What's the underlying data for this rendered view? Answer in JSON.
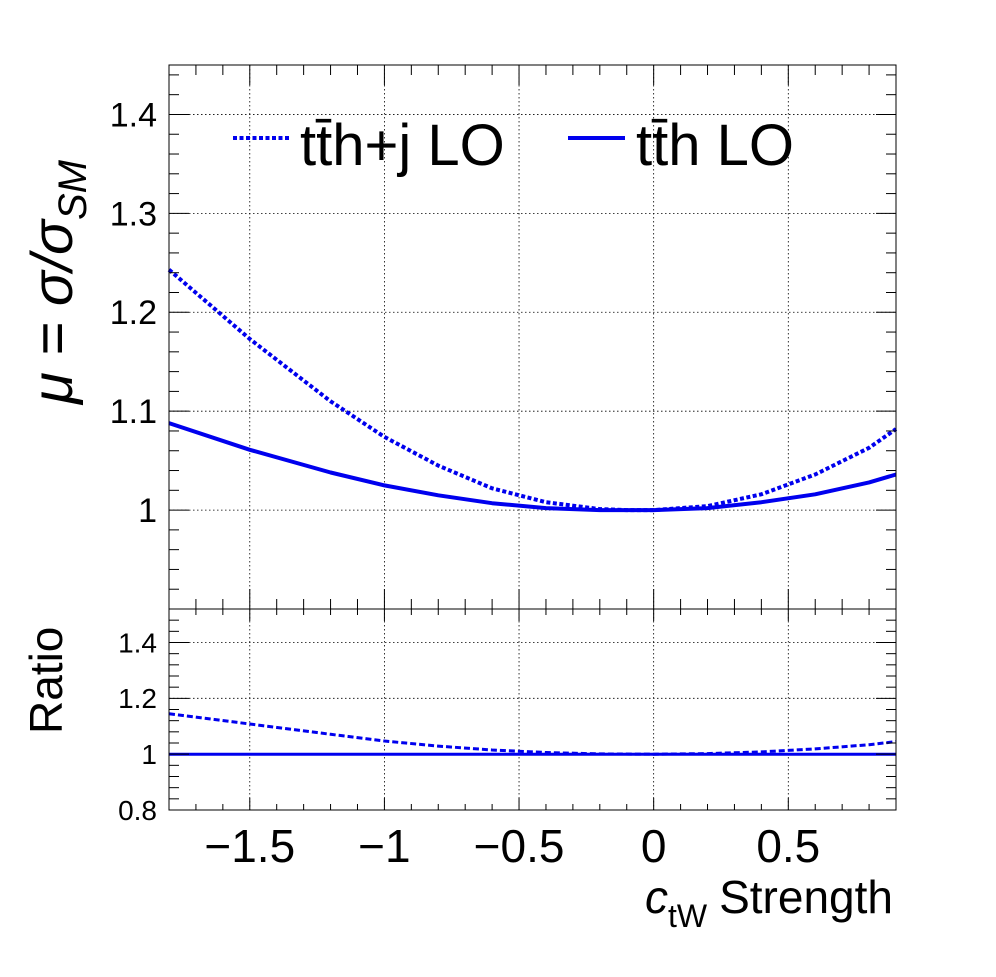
{
  "chart_data": {
    "type": "line",
    "colors": {
      "series": "#0000ee",
      "axes": "#000000"
    },
    "xlabel": {
      "symbol": "c",
      "subscript": "tW",
      "text": "Strength"
    },
    "x_range": [
      -1.8,
      0.9
    ],
    "x_ticks": [
      {
        "value": -1.5,
        "label": "−1.5"
      },
      {
        "value": -1,
        "label": "−1"
      },
      {
        "value": -0.5,
        "label": "−0.5"
      },
      {
        "value": 0,
        "label": "0"
      },
      {
        "value": 0.5,
        "label": "0.5"
      }
    ],
    "legend": {
      "placement": "top",
      "entries": [
        {
          "label": "tt̄h+j LO",
          "style": "dashed"
        },
        {
          "label": "tt̄h LO",
          "style": "solid"
        }
      ]
    },
    "grid": true,
    "panels": [
      {
        "name": "main",
        "ylabel": {
          "prefix": "μ = σ/σ",
          "subscript": "SM"
        },
        "y_range": [
          0.9,
          1.45
        ],
        "y_ticks": [
          {
            "value": 1,
            "label": "1"
          },
          {
            "value": 1.1,
            "label": "1.1"
          },
          {
            "value": 1.2,
            "label": "1.2"
          },
          {
            "value": 1.3,
            "label": "1.3"
          },
          {
            "value": 1.4,
            "label": "1.4"
          }
        ],
        "x": [
          -1.8,
          -1.5,
          -1.2,
          -1.0,
          -0.8,
          -0.6,
          -0.4,
          -0.2,
          -0.1,
          0.0,
          0.2,
          0.4,
          0.6,
          0.8,
          0.9
        ],
        "series": [
          {
            "name": "tt̄h+j LO",
            "style": "dashed",
            "values": [
              1.243,
              1.173,
              1.11,
              1.074,
              1.045,
              1.022,
              1.008,
              1.001,
              1.0,
              1.0,
              1.004,
              1.016,
              1.036,
              1.063,
              1.082
            ]
          },
          {
            "name": "tt̄h LO",
            "style": "solid",
            "values": [
              1.088,
              1.061,
              1.038,
              1.025,
              1.015,
              1.007,
              1.002,
              1.0,
              1.0,
              1.0,
              1.002,
              1.008,
              1.016,
              1.028,
              1.036
            ]
          }
        ]
      },
      {
        "name": "ratio",
        "ylabel": {
          "prefix": "Ratio",
          "subscript": ""
        },
        "y_range": [
          0.8,
          1.52
        ],
        "y_ticks": [
          {
            "value": 0.8,
            "label": "0.8"
          },
          {
            "value": 1,
            "label": "1"
          },
          {
            "value": 1.2,
            "label": "1.2"
          },
          {
            "value": 1.4,
            "label": "1.4"
          }
        ],
        "x": [
          -1.8,
          -1.5,
          -1.2,
          -1.0,
          -0.8,
          -0.6,
          -0.4,
          -0.2,
          0.0,
          0.2,
          0.4,
          0.6,
          0.8,
          0.9
        ],
        "series": [
          {
            "name": "tt̄h+j LO",
            "style": "dashed",
            "values": [
              1.145,
              1.108,
              1.071,
              1.047,
              1.029,
              1.015,
              1.006,
              1.001,
              1.0,
              1.002,
              1.008,
              1.019,
              1.034,
              1.045
            ]
          },
          {
            "name": "tt̄h LO",
            "style": "solid",
            "values": [
              1.0,
              1.0,
              1.0,
              1.0,
              1.0,
              1.0,
              1.0,
              1.0,
              1.0,
              1.0,
              1.0,
              1.0,
              1.0,
              1.0
            ]
          }
        ]
      }
    ]
  }
}
